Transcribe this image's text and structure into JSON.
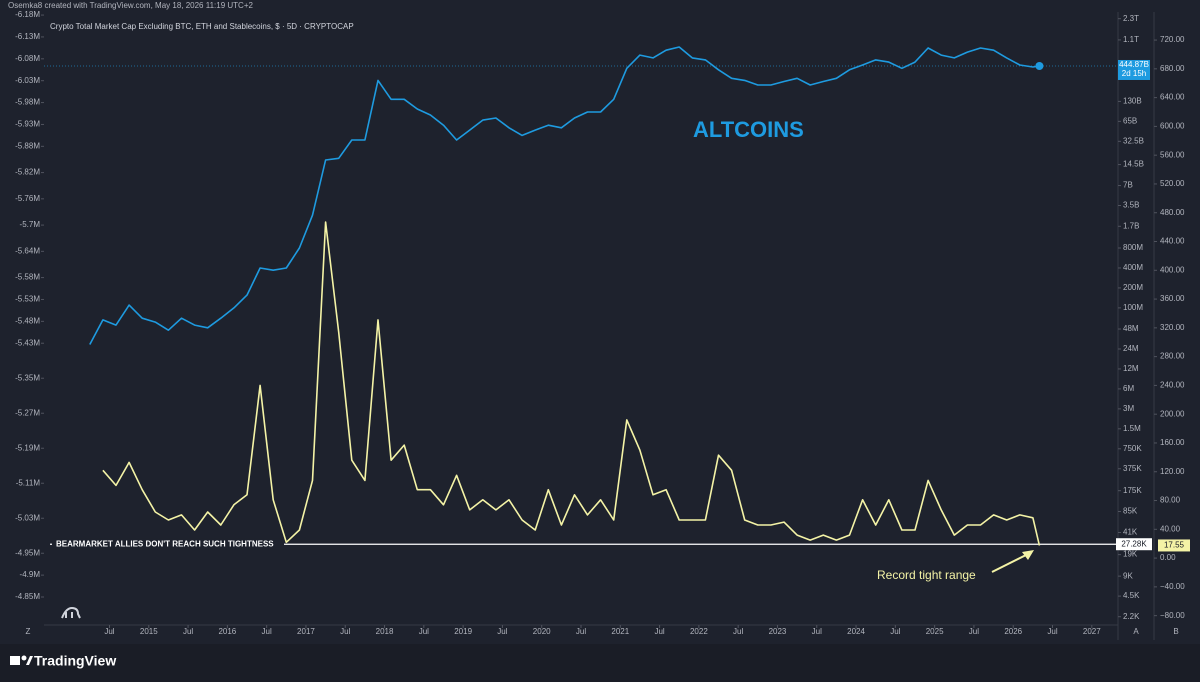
{
  "header": "Osemka8 created with TradingView.com, May 18, 2026 11:19 UTC+2",
  "footer": "TradingView",
  "chart_data": {
    "type": "line",
    "title": "Crypto Total Market Cap Excluding BTC, ETH and Stablecoins, $ · 5D · CRYPTOCAP",
    "annotations": [
      "ALTCOINS",
      "BEARMARKET ALLIES DON'T REACH SUCH TIGHTNESS",
      "Record tight range"
    ],
    "axis_badges": [
      "Z",
      "A",
      "B"
    ],
    "x": [
      "2014-04",
      "2014-06",
      "2014-08",
      "2014-10",
      "2014-12",
      "2015-02",
      "2015-04",
      "2015-06",
      "2015-08",
      "2015-10",
      "2015-12",
      "2016-02",
      "2016-04",
      "2016-06",
      "2016-08",
      "2016-10",
      "2016-12",
      "2017-02",
      "2017-04",
      "2017-06",
      "2017-08",
      "2017-10",
      "2017-12",
      "2018-02",
      "2018-04",
      "2018-06",
      "2018-08",
      "2018-10",
      "2018-12",
      "2019-02",
      "2019-04",
      "2019-06",
      "2019-08",
      "2019-10",
      "2019-12",
      "2020-02",
      "2020-04",
      "2020-06",
      "2020-08",
      "2020-10",
      "2020-12",
      "2021-02",
      "2021-04",
      "2021-06",
      "2021-08",
      "2021-10",
      "2021-12",
      "2022-02",
      "2022-04",
      "2022-06",
      "2022-08",
      "2022-10",
      "2022-12",
      "2023-02",
      "2023-04",
      "2023-06",
      "2023-08",
      "2023-10",
      "2023-12",
      "2024-02",
      "2024-04",
      "2024-06",
      "2024-08",
      "2024-10",
      "2024-12",
      "2025-02",
      "2025-04",
      "2025-06",
      "2025-08",
      "2025-10",
      "2025-12",
      "2026-02",
      "2026-04",
      "2026-05"
    ],
    "series": [
      {
        "color": "#1e9be0",
        "axis": "y2",
        "last_value_label": "444.87B",
        "countdown": "2d 15h",
        "values": [
          28000000.0,
          66000000.0,
          55000000.0,
          110000000.0,
          70000000.0,
          61000000.0,
          46000000.0,
          70000000.0,
          55000000.0,
          50000000.0,
          70000000.0,
          100000000.0,
          156000000.0,
          400000000.0,
          370000000.0,
          400000000.0,
          800000000.0,
          2500000000.0,
          17000000000.0,
          18000000000.0,
          34000000000.0,
          34000000000.0,
          270000000000.0,
          140000000000.0,
          140000000000.0,
          100000000000.0,
          81000000000.0,
          57000000000.0,
          34000000000.0,
          48000000000.0,
          68000000000.0,
          73000000000.0,
          52000000000.0,
          40000000000.0,
          48000000000.0,
          57000000000.0,
          52000000000.0,
          73000000000.0,
          90000000000.0,
          90000000000.0,
          140000000000.0,
          410000000000.0,
          650000000000.0,
          590000000000.0,
          770000000000.0,
          860000000000.0,
          590000000000.0,
          550000000000.0,
          390000000000.0,
          290000000000.0,
          270000000000.0,
          230000000000.0,
          230000000000.0,
          260000000000.0,
          290000000000.0,
          230000000000.0,
          260000000000.0,
          290000000000.0,
          390000000000.0,
          460000000000.0,
          550000000000.0,
          510000000000.0,
          410000000000.0,
          510000000000.0,
          830000000000.0,
          650000000000.0,
          590000000000.0,
          720000000000.0,
          830000000000.0,
          770000000000.0,
          590000000000.0,
          460000000000.0,
          430000000000.0,
          444870000000
        ]
      },
      {
        "color": "#f4f3a6",
        "axis": "y",
        "last_value_label": "17.55",
        "values": [
          null,
          122,
          101,
          133,
          95,
          64,
          53,
          60,
          39,
          64,
          46,
          74,
          88,
          240,
          81,
          22,
          39,
          108,
          467,
          314,
          136,
          108,
          331,
          136,
          157,
          95,
          95,
          74,
          115,
          67,
          81,
          67,
          81,
          53,
          39,
          95,
          46,
          88,
          60,
          81,
          53,
          192,
          150,
          88,
          95,
          53,
          53,
          53,
          143,
          122,
          53,
          46,
          46,
          50,
          32,
          25,
          32,
          25,
          32,
          81,
          46,
          81,
          39,
          39,
          108,
          67,
          32,
          46,
          46,
          60,
          53,
          60,
          56,
          17.55
        ]
      }
    ],
    "hline": {
      "value": 27280,
      "label": "27.28K",
      "axis": "y2"
    },
    "xlim": [
      "2013-09",
      "2027-05"
    ],
    "xticks": [
      {
        "value": "2014-07",
        "label": "Jul"
      },
      {
        "value": "2015-01",
        "label": "2015"
      },
      {
        "value": "2015-07",
        "label": "Jul"
      },
      {
        "value": "2016-01",
        "label": "2016"
      },
      {
        "value": "2016-07",
        "label": "Jul"
      },
      {
        "value": "2017-01",
        "label": "2017"
      },
      {
        "value": "2017-07",
        "label": "Jul"
      },
      {
        "value": "2018-01",
        "label": "2018"
      },
      {
        "value": "2018-07",
        "label": "Jul"
      },
      {
        "value": "2019-01",
        "label": "2019"
      },
      {
        "value": "2019-07",
        "label": "Jul"
      },
      {
        "value": "2020-01",
        "label": "2020"
      },
      {
        "value": "2020-07",
        "label": "Jul"
      },
      {
        "value": "2021-01",
        "label": "2021"
      },
      {
        "value": "2021-07",
        "label": "Jul"
      },
      {
        "value": "2022-01",
        "label": "2022"
      },
      {
        "value": "2022-07",
        "label": "Jul"
      },
      {
        "value": "2023-01",
        "label": "2023"
      },
      {
        "value": "2023-07",
        "label": "Jul"
      },
      {
        "value": "2024-01",
        "label": "2024"
      },
      {
        "value": "2024-07",
        "label": "Jul"
      },
      {
        "value": "2025-01",
        "label": "2025"
      },
      {
        "value": "2025-07",
        "label": "Jul"
      },
      {
        "value": "2026-01",
        "label": "2026"
      },
      {
        "value": "2026-07",
        "label": "Jul"
      },
      {
        "value": "2027-01",
        "label": "2027"
      }
    ],
    "ylim": [
      -93,
      759
    ],
    "yticks": [
      {
        "value": 720,
        "label": "720.00"
      },
      {
        "value": 680,
        "label": "680.00"
      },
      {
        "value": 640,
        "label": "640.00"
      },
      {
        "value": 600,
        "label": "600.00"
      },
      {
        "value": 560,
        "label": "560.00"
      },
      {
        "value": 520,
        "label": "520.00"
      },
      {
        "value": 480,
        "label": "480.00"
      },
      {
        "value": 440,
        "label": "440.00"
      },
      {
        "value": 400,
        "label": "400.00"
      },
      {
        "value": 360,
        "label": "360.00"
      },
      {
        "value": 320,
        "label": "320.00"
      },
      {
        "value": 280,
        "label": "280.00"
      },
      {
        "value": 240,
        "label": "240.00"
      },
      {
        "value": 200,
        "label": "200.00"
      },
      {
        "value": 160,
        "label": "160.00"
      },
      {
        "value": 120,
        "label": "120.00"
      },
      {
        "value": 80,
        "label": "80.00"
      },
      {
        "value": 40,
        "label": "40.00"
      },
      {
        "value": 0,
        "label": "0.00"
      },
      {
        "value": -40,
        "label": "−40.00"
      },
      {
        "value": -80,
        "label": "−80.00"
      }
    ],
    "y2scale": "log",
    "y2lim": [
      1650,
      2900000000000.0
    ],
    "y2ticks": [
      {
        "value": 2300000000000.0,
        "label": "2.3T"
      },
      {
        "value": 1100000000000.0,
        "label": "1.1T"
      },
      {
        "value": 130000000000.0,
        "label": "130B"
      },
      {
        "value": 65000000000.0,
        "label": "65B"
      },
      {
        "value": 32500000000.0,
        "label": "32.5B"
      },
      {
        "value": 14500000000.0,
        "label": "14.5B"
      },
      {
        "value": 7000000000.0,
        "label": "7B"
      },
      {
        "value": 3500000000.0,
        "label": "3.5B"
      },
      {
        "value": 1700000000.0,
        "label": "1.7B"
      },
      {
        "value": 800000000.0,
        "label": "800M"
      },
      {
        "value": 400000000.0,
        "label": "400M"
      },
      {
        "value": 200000000.0,
        "label": "200M"
      },
      {
        "value": 100000000.0,
        "label": "100M"
      },
      {
        "value": 48000000.0,
        "label": "48M"
      },
      {
        "value": 24000000.0,
        "label": "24M"
      },
      {
        "value": 12000000.0,
        "label": "12M"
      },
      {
        "value": 6000000.0,
        "label": "6M"
      },
      {
        "value": 3000000.0,
        "label": "3M"
      },
      {
        "value": 1500000.0,
        "label": "1.5M"
      },
      {
        "value": 750000,
        "label": "750K"
      },
      {
        "value": 375000,
        "label": "375K"
      },
      {
        "value": 175000,
        "label": "175K"
      },
      {
        "value": 85000,
        "label": "85K"
      },
      {
        "value": 41000,
        "label": "41K"
      },
      {
        "value": 19000,
        "label": "19K"
      },
      {
        "value": 9000,
        "label": "9K"
      },
      {
        "value": 4500,
        "label": "4.5K"
      },
      {
        "value": 2200,
        "label": "2.2K"
      }
    ],
    "y3lim": [
      -4786000,
      -6187000
    ],
    "y3ticks": [
      {
        "value": -4850000,
        "label": "-4.85M"
      },
      {
        "value": -4900000,
        "label": "-4.9M"
      },
      {
        "value": -4950000,
        "label": "-4.95M"
      },
      {
        "value": -5030000,
        "label": "-5.03M"
      },
      {
        "value": -5110000,
        "label": "-5.11M"
      },
      {
        "value": -5190000,
        "label": "-5.19M"
      },
      {
        "value": -5270000,
        "label": "-5.27M"
      },
      {
        "value": -5350000,
        "label": "-5.35M"
      },
      {
        "value": -5430000,
        "label": "-5.43M"
      },
      {
        "value": -5480000,
        "label": "-5.48M"
      },
      {
        "value": -5530000,
        "label": "-5.53M"
      },
      {
        "value": -5580000,
        "label": "-5.58M"
      },
      {
        "value": -5640000,
        "label": "-5.64M"
      },
      {
        "value": -5700000,
        "label": "-5.7M"
      },
      {
        "value": -5760000,
        "label": "-5.76M"
      },
      {
        "value": -5820000,
        "label": "-5.82M"
      },
      {
        "value": -5880000,
        "label": "-5.88M"
      },
      {
        "value": -5930000,
        "label": "-5.93M"
      },
      {
        "value": -5980000,
        "label": "-5.98M"
      },
      {
        "value": -6030000,
        "label": "-6.03M"
      },
      {
        "value": -6080000,
        "label": "-6.08M"
      },
      {
        "value": -6130000,
        "label": "-6.13M"
      },
      {
        "value": -6180000,
        "label": "-6.18M"
      }
    ]
  }
}
